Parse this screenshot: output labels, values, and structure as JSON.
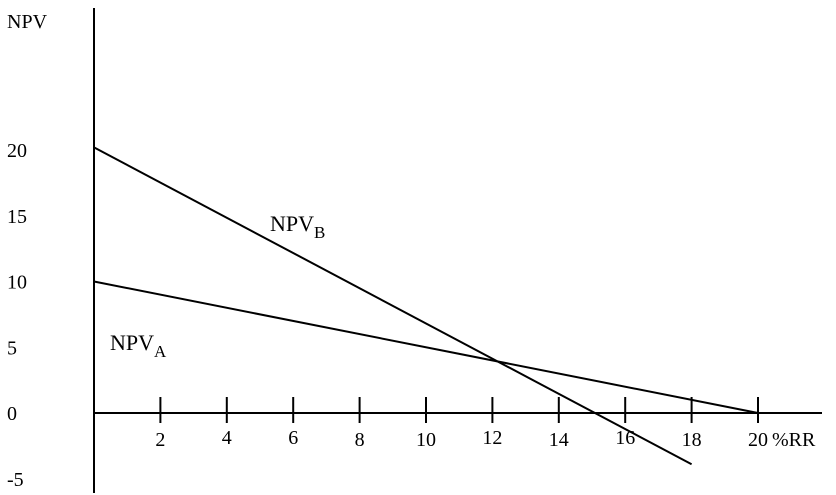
{
  "chart_data": {
    "type": "line",
    "title": "",
    "xlabel": "%RR",
    "ylabel": "NPV",
    "xlim": [
      0,
      22
    ],
    "ylim": [
      -5,
      25
    ],
    "x_ticks": [
      2,
      4,
      6,
      8,
      10,
      12,
      14,
      16,
      18,
      20
    ],
    "y_ticks": [
      -5,
      0,
      5,
      10,
      15,
      20
    ],
    "grid": false,
    "series": [
      {
        "name": "NPV",
        "subscript": "B",
        "x": [
          0,
          18
        ],
        "y": [
          20.2,
          -3.9
        ]
      },
      {
        "name": "NPV",
        "subscript": "A",
        "x": [
          0,
          20
        ],
        "y": [
          10,
          0
        ]
      }
    ]
  }
}
